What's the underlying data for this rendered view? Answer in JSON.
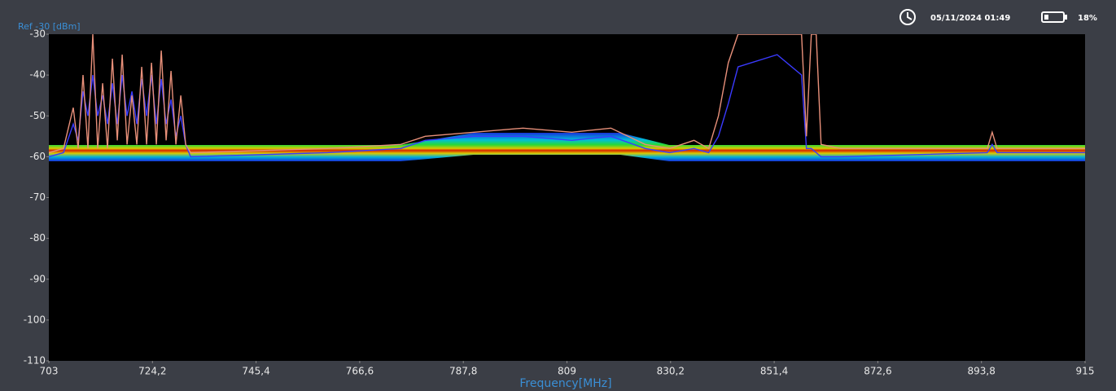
{
  "status": {
    "datetime": "05/11/2024 01:49",
    "battery": "18%"
  },
  "chart_data": {
    "type": "line",
    "annotation": "Ref -30 [dBm]",
    "xlabel": "Frequency[MHz]",
    "x": [
      703,
      706,
      708,
      709,
      710,
      711,
      712,
      713,
      714,
      715,
      716,
      717,
      718,
      719,
      720,
      721,
      722,
      723,
      724,
      725,
      726,
      727,
      728,
      729,
      730,
      731,
      732,
      760,
      775,
      780,
      790,
      800,
      810,
      818,
      825,
      830,
      835,
      838,
      840,
      842,
      844,
      852,
      857,
      858,
      859,
      860,
      861,
      865,
      895,
      896,
      897,
      915
    ],
    "series": [
      {
        "color": "#e8907a",
        "values": [
          -59,
          -58,
          -48,
          -58,
          -40,
          -58,
          -30,
          -58,
          -42,
          -58,
          -36,
          -56,
          -35,
          -57,
          -45,
          -57,
          -38,
          -57,
          -37,
          -57,
          -34,
          -56,
          -39,
          -57,
          -45,
          -57,
          -59,
          -58,
          -57,
          -55,
          -54,
          -53,
          -54,
          -53,
          -57,
          -58,
          -56,
          -58,
          -50,
          -37,
          -30,
          -30,
          -30,
          -55,
          -30,
          -30,
          -57,
          -58,
          -58,
          -54,
          -58,
          -58
        ]
      },
      {
        "color": "#3a3aff",
        "values": [
          -60,
          -59,
          -52,
          -56,
          -44,
          -50,
          -40,
          -50,
          -45,
          -52,
          -42,
          -52,
          -40,
          -50,
          -44,
          -52,
          -41,
          -50,
          -40,
          -52,
          -41,
          -52,
          -46,
          -55,
          -50,
          -57,
          -60,
          -59,
          -58,
          -56,
          -55,
          -55,
          -56,
          -55,
          -58,
          -59,
          -58,
          -59,
          -55,
          -47,
          -38,
          -35,
          -40,
          -58,
          -58,
          -59,
          -60,
          -60,
          -59,
          -57,
          -59,
          -59
        ]
      }
    ],
    "xlim": [
      703,
      915
    ],
    "xticks": [
      703,
      {
        "value": 724.2,
        "label": "724,2"
      },
      {
        "value": 745.4,
        "label": "745,4"
      },
      {
        "value": 766.6,
        "label": "766,6"
      },
      {
        "value": 787.8,
        "label": "787,8"
      },
      809,
      {
        "value": 830.2,
        "label": "830,2"
      },
      {
        "value": 851.4,
        "label": "851,4"
      },
      {
        "value": 872.6,
        "label": "872,6"
      },
      {
        "value": 893.8,
        "label": "893,8"
      },
      915
    ],
    "ylim": [
      -110,
      -30
    ],
    "yticks": [
      -30,
      -40,
      -50,
      -60,
      -70,
      -80,
      -90,
      -100,
      -110
    ],
    "grid": false
  }
}
